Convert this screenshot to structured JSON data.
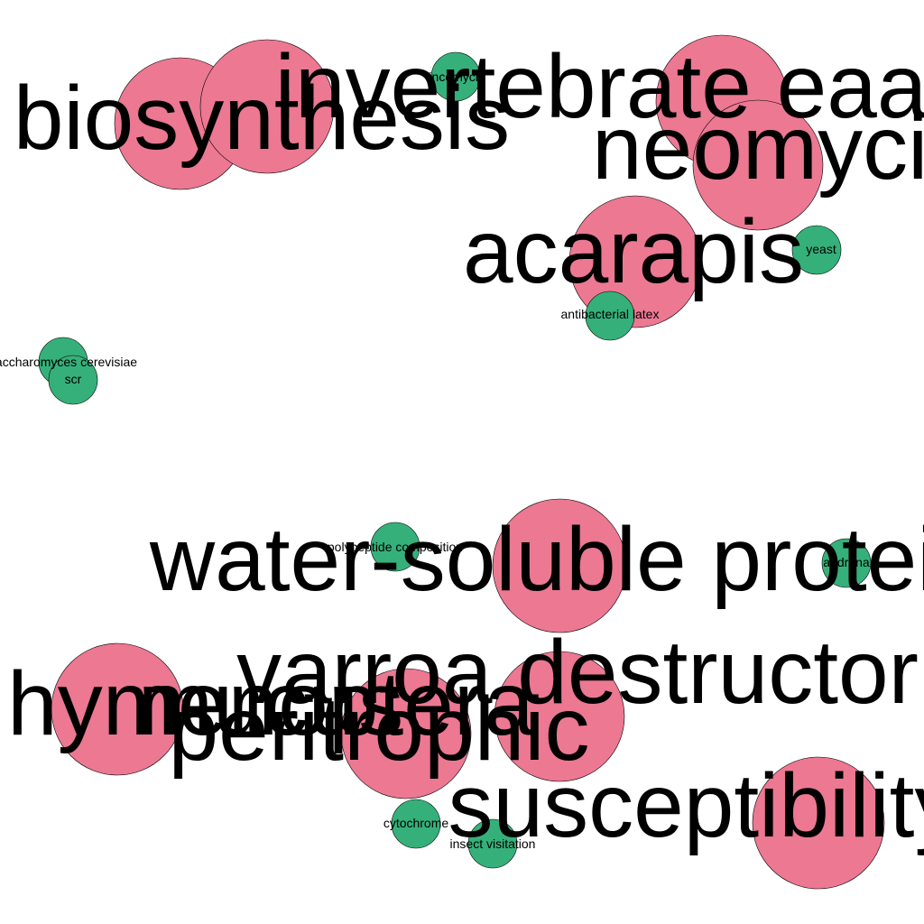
{
  "colors": {
    "large_node": "#ec7892",
    "small_node": "#36b07a",
    "background": "#ffffff",
    "outline": "#000000"
  },
  "large_nodes": [
    {
      "label": "invertebrate eaat"
    },
    {
      "label": "biosynthesis"
    },
    {
      "label": "neomycin"
    },
    {
      "label": "acarapis"
    },
    {
      "label": "water-soluble protein"
    },
    {
      "label": "varroa destructor"
    },
    {
      "label": "peritrophic"
    },
    {
      "label": "hymenoptera"
    },
    {
      "label": "mucus"
    },
    {
      "label": "susceptibility"
    }
  ],
  "small_nodes": [
    {
      "label": "lincomycin"
    },
    {
      "label": "yeast"
    },
    {
      "label": "antibacterial latex"
    },
    {
      "label": "saccharomyces cerevisiae"
    },
    {
      "label": "scr"
    },
    {
      "label": "polypeptide composition"
    },
    {
      "label": "andrena"
    },
    {
      "label": "cytochrome"
    },
    {
      "label": "insect visitation"
    }
  ]
}
